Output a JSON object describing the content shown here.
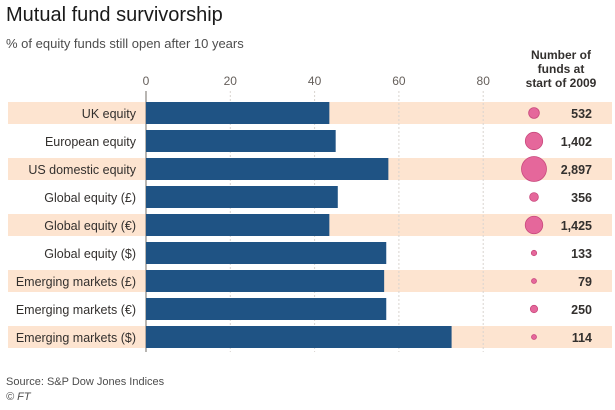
{
  "chart_data": {
    "type": "bar",
    "orientation": "horizontal",
    "title": "Mutual fund survivorship",
    "subtitle": "% of equity funds still open after 10 years",
    "categories": [
      "UK equity",
      "European equity",
      "US domestic equity",
      "Global equity (£)",
      "Global equity (€)",
      "Global equity ($)",
      "Emerging markets (£)",
      "Emerging markets (€)",
      "Emerging markets ($)"
    ],
    "values": [
      43.5,
      45,
      57.5,
      45.5,
      43.5,
      57,
      56.5,
      57,
      72.5
    ],
    "x_ticks": [
      0,
      20,
      40,
      60,
      80
    ],
    "xlim": [
      0,
      100
    ],
    "grid": true,
    "bar_color": "#1f5384",
    "row_stripe_color": "#fde4d0",
    "bubble_column": {
      "header": [
        "Number of",
        "funds at",
        "start of 2009"
      ],
      "values": [
        532,
        1402,
        2897,
        356,
        1425,
        133,
        79,
        250,
        114
      ],
      "labels": [
        "532",
        "1,402",
        "2,897",
        "356",
        "1,425",
        "133",
        "79",
        "250",
        "114"
      ],
      "bubble_color": "#e5679b"
    }
  },
  "footer": {
    "source": "Source: S&P Dow Jones Indices",
    "credit": "© FT"
  }
}
